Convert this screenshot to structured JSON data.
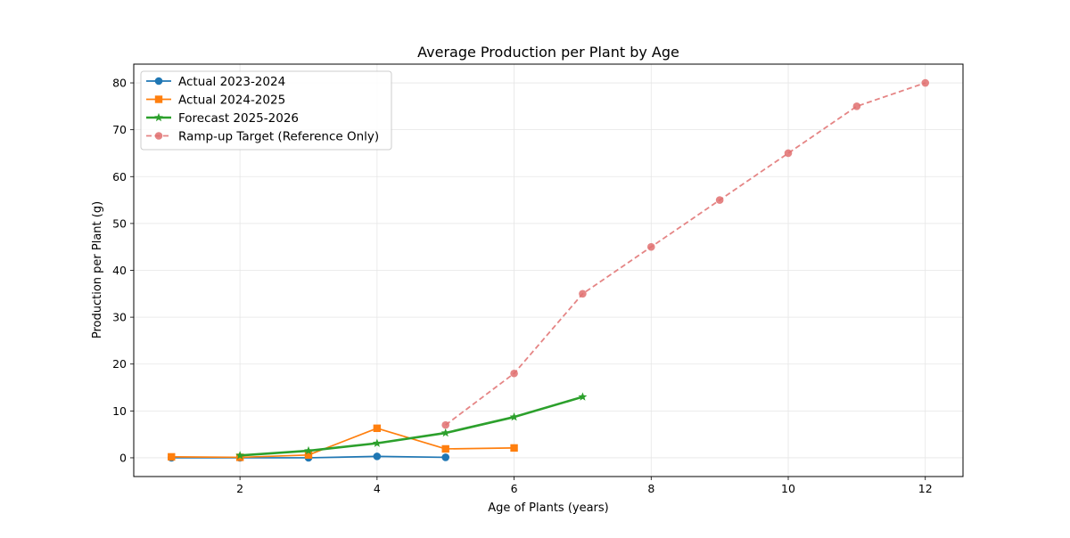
{
  "chart_data": {
    "type": "line",
    "title": "Average Production per Plant by Age",
    "xlabel": "Age of Plants (years)",
    "ylabel": "Production per Plant (g)",
    "xlim": [
      0.45,
      12.55
    ],
    "ylim": [
      -4,
      84
    ],
    "xticks": [
      2,
      4,
      6,
      8,
      10,
      12
    ],
    "yticks": [
      0,
      10,
      20,
      30,
      40,
      50,
      60,
      70,
      80
    ],
    "grid": true,
    "legend_position": "upper-left",
    "series": [
      {
        "name": "Actual 2023-2024",
        "color": "#1f77b4",
        "marker": "circle",
        "line_style": "solid",
        "x": [
          1,
          2,
          3,
          4,
          5
        ],
        "y": [
          0.0,
          0.0,
          0.0,
          0.3,
          0.1
        ]
      },
      {
        "name": "Actual 2024-2025",
        "color": "#ff7f0e",
        "marker": "square",
        "line_style": "solid",
        "x": [
          1,
          2,
          3,
          4,
          5,
          6
        ],
        "y": [
          0.2,
          0.1,
          0.6,
          6.3,
          1.9,
          2.1
        ]
      },
      {
        "name": "Forecast 2025-2026",
        "color": "#2ca02c",
        "marker": "star",
        "line_style": "solid-thick",
        "x": [
          2,
          3,
          4,
          5,
          6,
          7
        ],
        "y": [
          0.5,
          1.5,
          3.1,
          5.3,
          8.7,
          13.0
        ]
      },
      {
        "name": "Ramp-up Target (Reference Only)",
        "color": "#e07070",
        "marker": "circle",
        "line_style": "dashed",
        "x": [
          5,
          6,
          7,
          8,
          9,
          10,
          11,
          12
        ],
        "y": [
          7,
          18,
          35,
          45,
          55,
          65,
          75,
          80
        ]
      }
    ]
  }
}
